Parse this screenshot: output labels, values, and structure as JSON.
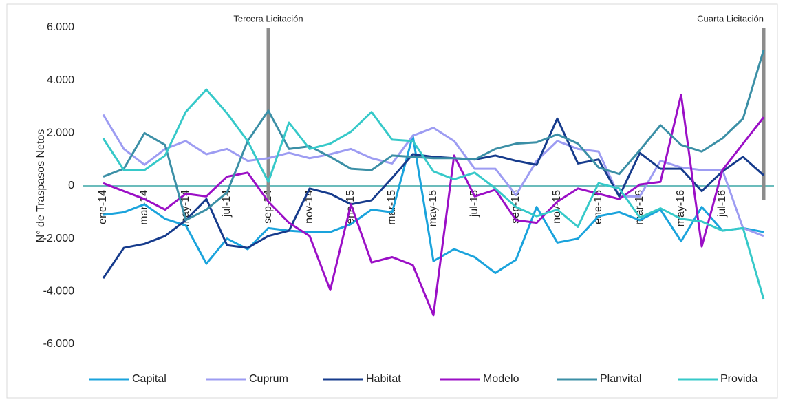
{
  "chart_data": {
    "type": "line",
    "y_label": "N° de Traspasos Netos",
    "categories": [
      "ene-14",
      null,
      "mar-14",
      null,
      "may-14",
      null,
      "jul-14",
      null,
      "sep-14",
      null,
      "nov-14",
      null,
      "ene-15",
      null,
      "mar-15",
      null,
      "may-15",
      null,
      "jul-15",
      null,
      "sep-15",
      null,
      "nov-15",
      null,
      "ene-16",
      null,
      "mar-16",
      null,
      "may-16",
      null,
      "jul-16",
      null,
      null
    ],
    "series": [
      {
        "name": "Capital",
        "color": "#1aa3dc",
        "values": [
          -1100,
          -1000,
          -700,
          -1250,
          -1500,
          -2950,
          -2000,
          -2400,
          -1600,
          -1700,
          -1750,
          -1750,
          -1450,
          -900,
          -1000,
          1900,
          -2850,
          -2400,
          -2700,
          -3300,
          -2800,
          -800,
          -2150,
          -2000,
          -1150,
          -1000,
          -1300,
          -900,
          -2100,
          -800,
          -1700,
          -1600,
          -1750
        ]
      },
      {
        "name": "Cuprum",
        "color": "#9d9cf2",
        "values": [
          2700,
          1400,
          800,
          1400,
          1700,
          1200,
          1400,
          950,
          1050,
          1250,
          1050,
          1200,
          1400,
          1050,
          850,
          1900,
          2200,
          1700,
          650,
          650,
          -350,
          950,
          1700,
          1400,
          1300,
          -400,
          -400,
          950,
          700,
          600,
          600,
          -1600,
          -1900
        ]
      },
      {
        "name": "Habitat",
        "color": "#163b8c",
        "values": [
          -3500,
          -2350,
          -2200,
          -1900,
          -1300,
          -500,
          -2250,
          -2350,
          -1900,
          -1700,
          -100,
          -300,
          -700,
          -550,
          300,
          1200,
          1100,
          1050,
          1000,
          1150,
          950,
          800,
          2550,
          850,
          1000,
          -400,
          1250,
          650,
          650,
          -200,
          550,
          1100,
          400
        ]
      },
      {
        "name": "Modelo",
        "color": "#9b0fc6",
        "values": [
          100,
          -200,
          -500,
          -900,
          -300,
          -400,
          350,
          500,
          -600,
          -1400,
          -1900,
          -3950,
          -700,
          -2900,
          -2700,
          -3000,
          -4900,
          1150,
          -400,
          -150,
          -1300,
          -1400,
          -600,
          -100,
          -300,
          -500,
          50,
          150,
          3450,
          -2300,
          600,
          1600,
          2600
        ]
      },
      {
        "name": "Planvital",
        "color": "#3b8fa6",
        "values": [
          350,
          650,
          2000,
          1550,
          -1300,
          -900,
          -250,
          1700,
          2850,
          1400,
          1500,
          1100,
          650,
          600,
          1150,
          1100,
          1050,
          1050,
          1000,
          1400,
          1600,
          1650,
          1950,
          1600,
          700,
          450,
          1350,
          2300,
          1550,
          1300,
          1800,
          2550,
          5150
        ]
      },
      {
        "name": "Provida",
        "color": "#36c9c9",
        "values": [
          1800,
          600,
          600,
          1150,
          2800,
          3650,
          2750,
          1700,
          150,
          2400,
          1400,
          1600,
          2050,
          2800,
          1750,
          1700,
          550,
          250,
          500,
          -100,
          -800,
          -1150,
          -900,
          -1550,
          100,
          -100,
          -1200,
          -850,
          -1250,
          -1350,
          -1700,
          -1600,
          -4300
        ]
      }
    ],
    "ylim": [
      -6000,
      6000
    ],
    "yticks": [
      {
        "value": -6000,
        "label": "-6.000"
      },
      {
        "value": -4000,
        "label": "-4.000"
      },
      {
        "value": -2000,
        "label": "-2.000"
      },
      0,
      {
        "value": 2000,
        "label": "2.000"
      },
      {
        "value": 4000,
        "label": "4.000"
      },
      {
        "value": 6000,
        "label": "6.000"
      }
    ],
    "annotations": [
      {
        "text": "Tercera Licitación",
        "at": 8
      },
      {
        "text": "Cuarta Licitación",
        "at": 32
      }
    ],
    "legend": "bottom"
  }
}
